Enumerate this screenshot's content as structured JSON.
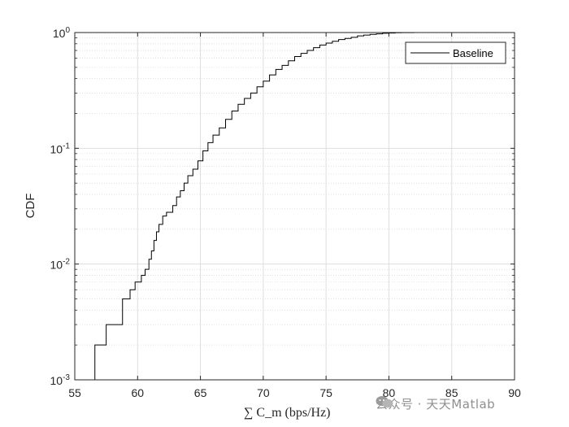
{
  "chart_data": {
    "type": "line",
    "step": true,
    "xlabel": "∑ C_m (bps/Hz)",
    "ylabel": "CDF",
    "xlim": [
      55,
      90
    ],
    "ylim": [
      0.001,
      1
    ],
    "yscale": "log",
    "grid": true,
    "minor_grid": true,
    "legend_position": "top-right",
    "x_ticks": [
      55,
      60,
      65,
      70,
      75,
      80,
      85,
      90
    ],
    "y_ticks": [
      {
        "value": 0.001,
        "base": "10",
        "exp": "-3"
      },
      {
        "value": 0.01,
        "base": "10",
        "exp": "-2"
      },
      {
        "value": 0.1,
        "base": "10",
        "exp": "-1"
      },
      {
        "value": 1,
        "base": "10",
        "exp": "0"
      }
    ],
    "series": [
      {
        "name": "Baseline",
        "color": "#000000",
        "points": [
          [
            56.6,
            0.001
          ],
          [
            56.6,
            0.002
          ],
          [
            57.5,
            0.002
          ],
          [
            57.5,
            0.003
          ],
          [
            58.8,
            0.003
          ],
          [
            58.8,
            0.005
          ],
          [
            59.4,
            0.005
          ],
          [
            59.4,
            0.006
          ],
          [
            59.8,
            0.006
          ],
          [
            59.8,
            0.007
          ],
          [
            60.3,
            0.007
          ],
          [
            60.3,
            0.008
          ],
          [
            60.6,
            0.008
          ],
          [
            60.6,
            0.009
          ],
          [
            60.9,
            0.009
          ],
          [
            60.9,
            0.011
          ],
          [
            61.1,
            0.013
          ],
          [
            61.3,
            0.016
          ],
          [
            61.5,
            0.019
          ],
          [
            61.7,
            0.022
          ],
          [
            62.0,
            0.026
          ],
          [
            62.3,
            0.028
          ],
          [
            62.6,
            0.028
          ],
          [
            62.8,
            0.032
          ],
          [
            63.1,
            0.038
          ],
          [
            63.4,
            0.043
          ],
          [
            63.7,
            0.05
          ],
          [
            64.0,
            0.058
          ],
          [
            64.4,
            0.066
          ],
          [
            64.8,
            0.078
          ],
          [
            65.2,
            0.095
          ],
          [
            65.6,
            0.112
          ],
          [
            66.0,
            0.13
          ],
          [
            66.5,
            0.15
          ],
          [
            67.0,
            0.178
          ],
          [
            67.5,
            0.21
          ],
          [
            68.0,
            0.24
          ],
          [
            68.5,
            0.27
          ],
          [
            69.0,
            0.3
          ],
          [
            69.5,
            0.34
          ],
          [
            70.0,
            0.38
          ],
          [
            70.5,
            0.43
          ],
          [
            71.0,
            0.48
          ],
          [
            71.5,
            0.52
          ],
          [
            72.0,
            0.57
          ],
          [
            72.5,
            0.62
          ],
          [
            73.0,
            0.66
          ],
          [
            73.5,
            0.7
          ],
          [
            74.0,
            0.74
          ],
          [
            74.5,
            0.78
          ],
          [
            75.0,
            0.81
          ],
          [
            75.5,
            0.84
          ],
          [
            76.0,
            0.87
          ],
          [
            76.5,
            0.89
          ],
          [
            77.0,
            0.91
          ],
          [
            77.5,
            0.935
          ],
          [
            78.0,
            0.95
          ],
          [
            78.5,
            0.965
          ],
          [
            79.0,
            0.975
          ],
          [
            79.5,
            0.985
          ],
          [
            80.0,
            0.99
          ],
          [
            80.5,
            0.995
          ],
          [
            81.0,
            0.998
          ],
          [
            82.0,
            1.0
          ]
        ]
      }
    ]
  },
  "watermark": {
    "text": "公众号 · 天天Matlab"
  }
}
